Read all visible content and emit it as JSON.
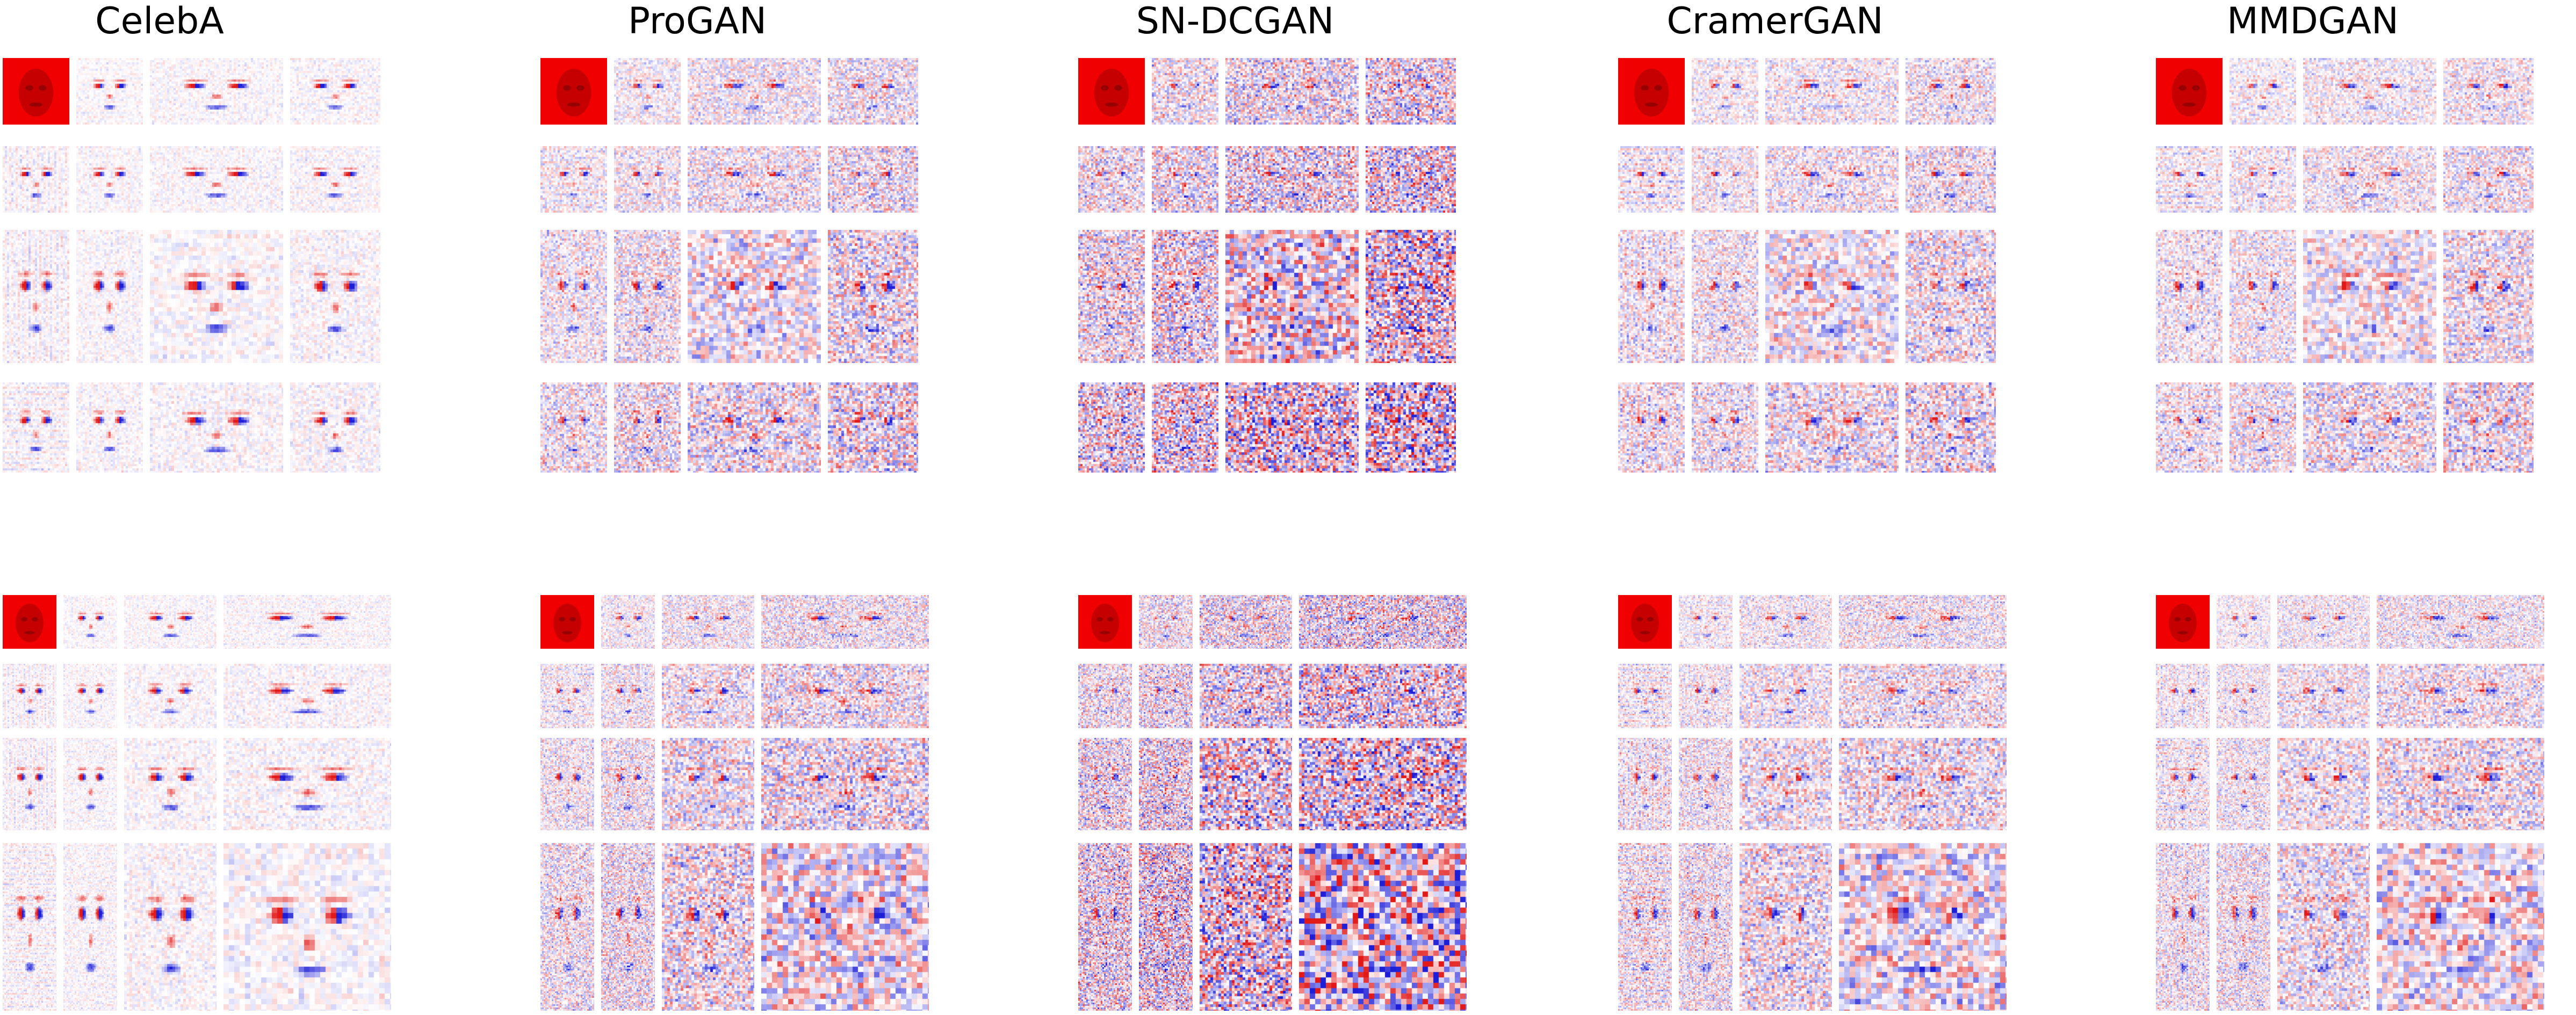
{
  "columns": [
    {
      "id": "celeba",
      "title": "CelebA",
      "noise": 0.1,
      "face": 0.95,
      "stripes": 0.22
    },
    {
      "id": "progan",
      "title": "ProGAN",
      "noise": 0.48,
      "face": 0.75,
      "stripes": 0.18
    },
    {
      "id": "sn-dcgan",
      "title": "SN-DCGAN",
      "noise": 0.78,
      "face": 0.6,
      "stripes": 0.25
    },
    {
      "id": "cramergan",
      "title": "CramerGAN",
      "noise": 0.42,
      "face": 0.7,
      "stripes": 0.35
    },
    {
      "id": "mmdgan",
      "title": "MMDGAN",
      "noise": 0.4,
      "face": 0.7,
      "stripes": 0.3
    }
  ],
  "panels": [
    {
      "id": "top-block",
      "rows": 4,
      "cols": 4
    },
    {
      "id": "bottom-block",
      "rows": 4,
      "cols": 4
    }
  ],
  "colors": {
    "background": "#ffffff",
    "positive": "#d7191c",
    "negative": "#1a1ad8",
    "neutral": "#ffffff",
    "first_tile_red": "#f00000"
  }
}
